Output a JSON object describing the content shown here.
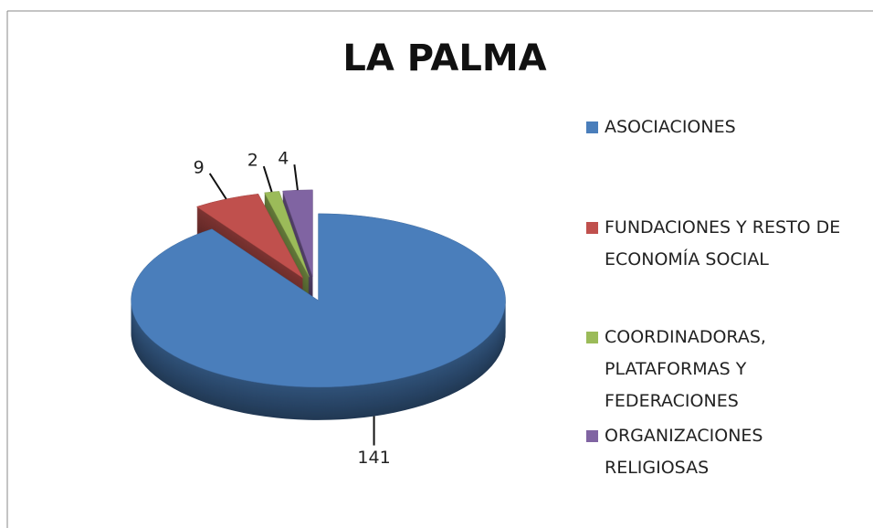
{
  "chart_data": {
    "type": "pie",
    "title": "LA PALMA",
    "categories": [
      "ASOCIACIONES",
      "FUNDACIONES Y RESTO DE ECONOMÍA SOCIAL",
      "COORDINADORAS, PLATAFORMAS Y FEDERACIONES",
      "ORGANIZACIONES RELIGIOSAS"
    ],
    "values": [
      141,
      9,
      2,
      4
    ],
    "colors": [
      "#4a7ebb",
      "#c0504d",
      "#9bbb59",
      "#8064a2"
    ],
    "legend": "right"
  }
}
